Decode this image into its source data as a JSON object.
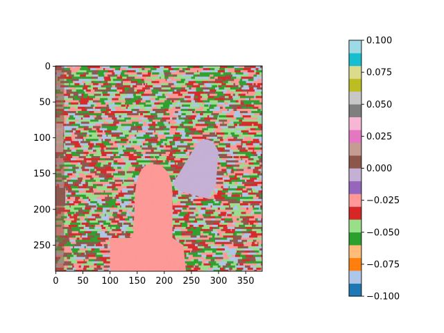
{
  "chart_data": [
    {
      "type": "heatmap",
      "title": "",
      "xlabel": "",
      "ylabel": "",
      "x_ticks": [
        0,
        50,
        100,
        150,
        200,
        250,
        300,
        350
      ],
      "y_ticks": [
        0,
        50,
        100,
        150,
        200,
        250
      ],
      "xlim": [
        -0.5,
        380.5
      ],
      "ylim": [
        286.5,
        -0.5
      ],
      "image_size": [
        381,
        287
      ],
      "grid": false,
      "colormap": "tab20",
      "vmin": -0.1,
      "vmax": 0.1,
      "regions": [
        {
          "name": "background-mixed",
          "value": -0.05,
          "mix": [
            -0.05,
            -0.04,
            -0.06,
            0.0,
            -0.02,
            -0.09
          ]
        },
        {
          "name": "salmon-figure",
          "value": -0.025
        },
        {
          "name": "purple-region",
          "value": -0.01
        },
        {
          "name": "brown-left-edge",
          "value": 0.005
        }
      ]
    },
    {
      "type": "colorbar",
      "ticks": [
        0.1,
        0.075,
        0.05,
        0.025,
        0.0,
        -0.025,
        -0.05,
        -0.075,
        -0.1
      ],
      "tick_labels": [
        "0.100",
        "0.075",
        "0.050",
        "0.025",
        "0.000",
        "−0.025",
        "−0.050",
        "−0.075",
        "−0.100"
      ],
      "segments": [
        "#1f77b4",
        "#aec7e8",
        "#ff7f0e",
        "#ffbb78",
        "#2ca02c",
        "#98df8a",
        "#d62728",
        "#ff9896",
        "#9467bd",
        "#c5b0d5",
        "#8c564b",
        "#c49c94",
        "#e377c2",
        "#f7b6d2",
        "#7f7f7f",
        "#c7c7c7",
        "#bcbd22",
        "#dbdb8d",
        "#17becf",
        "#9edae5"
      ]
    }
  ]
}
